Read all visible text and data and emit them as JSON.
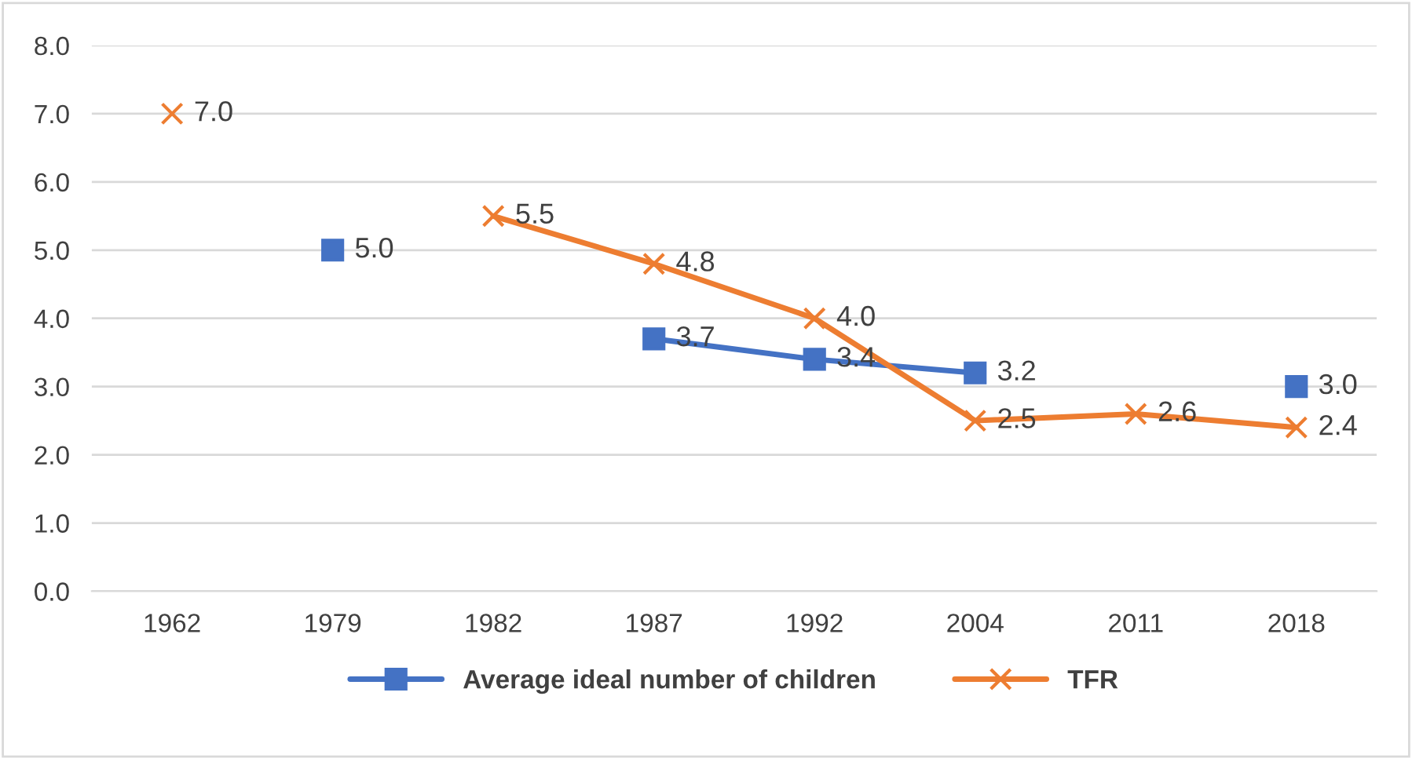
{
  "chart_data": {
    "type": "line",
    "categories": [
      "1962",
      "1979",
      "1982",
      "1987",
      "1992",
      "2004",
      "2011",
      "2018"
    ],
    "series": [
      {
        "name": "Average ideal number of children",
        "color": "#4472c4",
        "marker": "square",
        "values": [
          null,
          5.0,
          null,
          3.7,
          3.4,
          3.2,
          null,
          3.0
        ],
        "value_labels": [
          null,
          "5.0",
          null,
          "3.7",
          "3.4",
          "3.2",
          null,
          "3.0"
        ]
      },
      {
        "name": "TFR",
        "color": "#ed7d31",
        "marker": "cross",
        "values": [
          7.0,
          null,
          5.5,
          4.8,
          4.0,
          2.5,
          2.6,
          2.4
        ],
        "value_labels": [
          "7.0",
          null,
          "5.5",
          "4.8",
          "4.0",
          "2.5",
          "2.6",
          "2.4"
        ]
      }
    ],
    "ylim": [
      0,
      8
    ],
    "yticks": [
      {
        "value": 0,
        "label": "0.0"
      },
      {
        "value": 1,
        "label": "1.0"
      },
      {
        "value": 2,
        "label": "2.0"
      },
      {
        "value": 3,
        "label": "3.0"
      },
      {
        "value": 4,
        "label": "4.0"
      },
      {
        "value": 5,
        "label": "5.0"
      },
      {
        "value": 6,
        "label": "6.0"
      },
      {
        "value": 7,
        "label": "7.0"
      },
      {
        "value": 8,
        "label": "8.0"
      }
    ],
    "grid": "y",
    "legend": "bottom",
    "line_style": "solid"
  }
}
